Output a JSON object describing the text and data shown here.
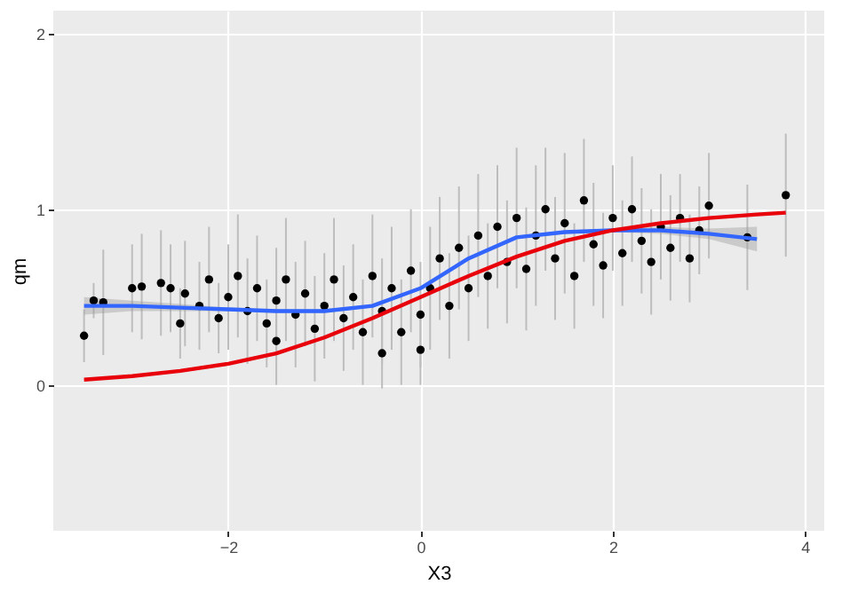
{
  "chart_data": {
    "type": "scatter",
    "xlabel": "X3",
    "ylabel": "qm",
    "xlim": [
      -3.82,
      4.2
    ],
    "ylim": [
      -0.83,
      2.13
    ],
    "xticks": [
      -2,
      0,
      2,
      4
    ],
    "yticks": [
      0,
      1,
      2
    ],
    "grid": true,
    "series": [
      {
        "marker": "circle",
        "color": "#000000",
        "x": [
          -3.5,
          -3.4,
          -3.3,
          -3.0,
          -2.9,
          -2.7,
          -2.6,
          -2.5,
          -2.45,
          -2.3,
          -2.2,
          -2.1,
          -2.0,
          -1.9,
          -1.8,
          -1.7,
          -1.6,
          -1.5,
          -1.5,
          -1.4,
          -1.3,
          -1.2,
          -1.1,
          -1.0,
          -0.9,
          -0.8,
          -0.7,
          -0.6,
          -0.5,
          -0.4,
          -0.4,
          -0.3,
          -0.2,
          -0.1,
          0.0,
          0.0,
          0.1,
          0.2,
          0.3,
          0.4,
          0.5,
          0.6,
          0.7,
          0.8,
          0.9,
          1.0,
          1.1,
          1.2,
          1.3,
          1.4,
          1.5,
          1.6,
          1.7,
          1.8,
          1.9,
          2.0,
          2.1,
          2.2,
          2.3,
          2.4,
          2.5,
          2.6,
          2.7,
          2.8,
          2.9,
          3.0,
          3.4,
          3.8
        ],
        "values": [
          0.28,
          0.48,
          0.47,
          0.55,
          0.56,
          0.58,
          0.55,
          0.35,
          0.52,
          0.45,
          0.6,
          0.38,
          0.5,
          0.62,
          0.42,
          0.55,
          0.35,
          0.48,
          0.25,
          0.6,
          0.4,
          0.52,
          0.32,
          0.45,
          0.6,
          0.38,
          0.5,
          0.3,
          0.62,
          0.42,
          0.18,
          0.55,
          0.3,
          0.65,
          0.4,
          0.2,
          0.55,
          0.72,
          0.45,
          0.78,
          0.55,
          0.85,
          0.62,
          0.9,
          0.7,
          0.95,
          0.66,
          0.85,
          1.0,
          0.72,
          0.92,
          0.62,
          1.05,
          0.8,
          0.68,
          0.95,
          0.75,
          1.0,
          0.82,
          0.7,
          0.9,
          0.78,
          0.95,
          0.72,
          0.88,
          1.02,
          0.84,
          1.08
        ],
        "errors": [
          0.15,
          0.1,
          0.3,
          0.25,
          0.3,
          0.3,
          0.25,
          0.2,
          0.3,
          0.25,
          0.3,
          0.2,
          0.3,
          0.35,
          0.3,
          0.3,
          0.25,
          0.3,
          0.25,
          0.35,
          0.3,
          0.3,
          0.3,
          0.3,
          0.35,
          0.3,
          0.3,
          0.3,
          0.35,
          0.3,
          0.2,
          0.35,
          0.3,
          0.35,
          0.3,
          0.2,
          0.35,
          0.35,
          0.3,
          0.35,
          0.3,
          0.35,
          0.3,
          0.35,
          0.35,
          0.4,
          0.35,
          0.4,
          0.35,
          0.35,
          0.4,
          0.3,
          0.35,
          0.35,
          0.3,
          0.3,
          0.3,
          0.3,
          0.3,
          0.3,
          0.3,
          0.3,
          0.25,
          0.25,
          0.25,
          0.3,
          0.3,
          0.35
        ]
      },
      {
        "type": "line",
        "color": "#3366ff",
        "x": [
          -3.5,
          -3,
          -2.5,
          -2,
          -1.5,
          -1,
          -0.5,
          0,
          0.5,
          1,
          1.5,
          2,
          2.5,
          3,
          3.5
        ],
        "values": [
          0.45,
          0.45,
          0.44,
          0.43,
          0.42,
          0.42,
          0.45,
          0.55,
          0.72,
          0.84,
          0.87,
          0.88,
          0.88,
          0.86,
          0.83
        ],
        "lower": [
          0.4,
          0.42,
          0.42,
          0.42,
          0.41,
          0.41,
          0.44,
          0.54,
          0.71,
          0.83,
          0.86,
          0.87,
          0.86,
          0.83,
          0.76
        ],
        "upper": [
          0.5,
          0.48,
          0.46,
          0.44,
          0.43,
          0.43,
          0.46,
          0.56,
          0.73,
          0.85,
          0.88,
          0.89,
          0.9,
          0.89,
          0.9
        ]
      },
      {
        "type": "line",
        "color": "#e8000b",
        "x": [
          -3.5,
          -3,
          -2.5,
          -2,
          -1.5,
          -1,
          -0.5,
          0,
          0.5,
          1,
          1.5,
          2,
          2.5,
          3,
          3.5,
          3.8
        ],
        "values": [
          0.03,
          0.05,
          0.08,
          0.12,
          0.18,
          0.27,
          0.38,
          0.5,
          0.62,
          0.73,
          0.82,
          0.88,
          0.92,
          0.95,
          0.97,
          0.98
        ]
      }
    ]
  }
}
